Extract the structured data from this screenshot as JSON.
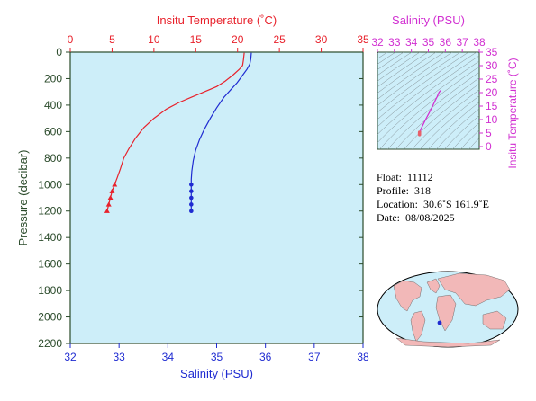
{
  "colors": {
    "temperature": "#e8212b",
    "salinity": "#1f2bd1",
    "inset_axis": "#d12fd1",
    "axis_dark": "#2a4a2a",
    "plot_bg": "#cdeef9",
    "contour": "#7f8a8f"
  },
  "chart_data": [
    {
      "type": "line",
      "title": "",
      "x_top_label": "Insitu Temperature (˚C)",
      "x_top_ticks": [
        0,
        5,
        10,
        15,
        20,
        25,
        30,
        35
      ],
      "x_top_range": [
        0,
        35
      ],
      "x_bottom_label": "Salinity (PSU)",
      "x_bottom_ticks": [
        32,
        33,
        34,
        35,
        36,
        37,
        38
      ],
      "x_bottom_range": [
        32,
        38
      ],
      "ylabel": "Pressure (decibar)",
      "y_ticks": [
        0,
        200,
        400,
        600,
        800,
        1000,
        1200,
        1400,
        1600,
        1800,
        2000,
        2200
      ],
      "y_range": [
        0,
        2200
      ],
      "y_inverted": true,
      "grid": false,
      "series": [
        {
          "key": "temperature",
          "axis": "top",
          "points": [
            [
              20.8,
              5
            ],
            [
              20.7,
              60
            ],
            [
              20.6,
              100
            ],
            [
              20.2,
              130
            ],
            [
              19.5,
              170
            ],
            [
              18.5,
              220
            ],
            [
              17.5,
              260
            ],
            [
              16.0,
              300
            ],
            [
              14.5,
              340
            ],
            [
              13.0,
              380
            ],
            [
              11.5,
              430
            ],
            [
              10.0,
              500
            ],
            [
              8.8,
              570
            ],
            [
              7.8,
              650
            ],
            [
              7.0,
              730
            ],
            [
              6.4,
              800
            ],
            [
              6.0,
              880
            ],
            [
              5.6,
              950
            ],
            [
              5.3,
              1000
            ],
            [
              5.0,
              1050
            ],
            [
              4.8,
              1100
            ],
            [
              4.6,
              1150
            ],
            [
              4.4,
              1200
            ]
          ],
          "markers": [
            [
              5.3,
              1000
            ],
            [
              5.0,
              1050
            ],
            [
              4.8,
              1100
            ],
            [
              4.6,
              1150
            ],
            [
              4.4,
              1200
            ]
          ]
        },
        {
          "key": "salinity",
          "axis": "bottom",
          "points": [
            [
              35.71,
              5
            ],
            [
              35.7,
              50
            ],
            [
              35.68,
              90
            ],
            [
              35.62,
              130
            ],
            [
              35.52,
              180
            ],
            [
              35.42,
              230
            ],
            [
              35.3,
              280
            ],
            [
              35.15,
              340
            ],
            [
              35.0,
              420
            ],
            [
              34.87,
              500
            ],
            [
              34.75,
              580
            ],
            [
              34.65,
              660
            ],
            [
              34.57,
              740
            ],
            [
              34.52,
              820
            ],
            [
              34.49,
              900
            ],
            [
              34.48,
              960
            ],
            [
              34.48,
              1000
            ],
            [
              34.48,
              1050
            ],
            [
              34.48,
              1100
            ],
            [
              34.48,
              1150
            ],
            [
              34.48,
              1200
            ]
          ],
          "markers": [
            [
              34.48,
              1000
            ],
            [
              34.48,
              1050
            ],
            [
              34.48,
              1100
            ],
            [
              34.48,
              1150
            ],
            [
              34.48,
              1200
            ]
          ]
        }
      ]
    },
    {
      "type": "line",
      "title": "",
      "xlabel": "Salinity (PSU)",
      "x_ticks": [
        32,
        33,
        34,
        35,
        36,
        37,
        38
      ],
      "x_range": [
        32,
        38
      ],
      "ylabel": "Insitu Temperature (˚C)",
      "y_ticks": [
        0,
        5,
        10,
        15,
        20,
        25,
        30,
        35
      ],
      "y_range": [
        -1,
        35
      ],
      "series": [
        {
          "key": "ts",
          "points": [
            [
              35.71,
              20.8
            ],
            [
              35.62,
              20.0
            ],
            [
              35.52,
              18.5
            ],
            [
              35.4,
              17.0
            ],
            [
              35.25,
              15.0
            ],
            [
              35.05,
              12.5
            ],
            [
              34.88,
              10.5
            ],
            [
              34.72,
              8.5
            ],
            [
              34.6,
              7.0
            ],
            [
              34.52,
              5.8
            ],
            [
              34.48,
              4.4
            ]
          ],
          "markers": [
            [
              34.48,
              5.3
            ],
            [
              34.48,
              5.0
            ],
            [
              34.48,
              4.8
            ],
            [
              34.48,
              4.6
            ],
            [
              34.48,
              4.4
            ]
          ]
        }
      ]
    }
  ],
  "info": {
    "float_label": "Float:",
    "float_value": "11112",
    "profile_label": "Profile:",
    "profile_value": "318",
    "location_label": "Location:",
    "location_value": "30.6˚S  161.9˚E",
    "date_label": "Date:",
    "date_value": "08/08/2025"
  },
  "map": {
    "float_lat": -30.6,
    "float_lon": 161.9,
    "ocean_color": "#cdeef9",
    "land_color": "#f2b8b8"
  }
}
